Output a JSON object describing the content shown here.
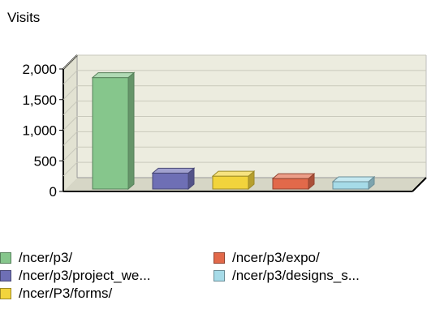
{
  "chart_data": {
    "type": "bar",
    "title": "Visits",
    "categories": [
      "/ncer/p3/",
      "/ncer/p3/project_we...",
      "/ncer/P3/forms/",
      "/ncer/p3/expo/",
      "/ncer/p3/designs_s..."
    ],
    "values": [
      1820,
      260,
      210,
      170,
      120
    ],
    "colors": [
      "#86c68c",
      "#6e6fb5",
      "#f2d43c",
      "#e2694a",
      "#a6dbe8"
    ],
    "yticks": [
      0,
      500,
      1000,
      1500,
      2000
    ],
    "ytick_labels": [
      "0",
      "500",
      "1,000",
      "1,500",
      "2,000"
    ],
    "ylim": [
      0,
      2000
    ],
    "grid": true,
    "legend_position": "bottom"
  }
}
